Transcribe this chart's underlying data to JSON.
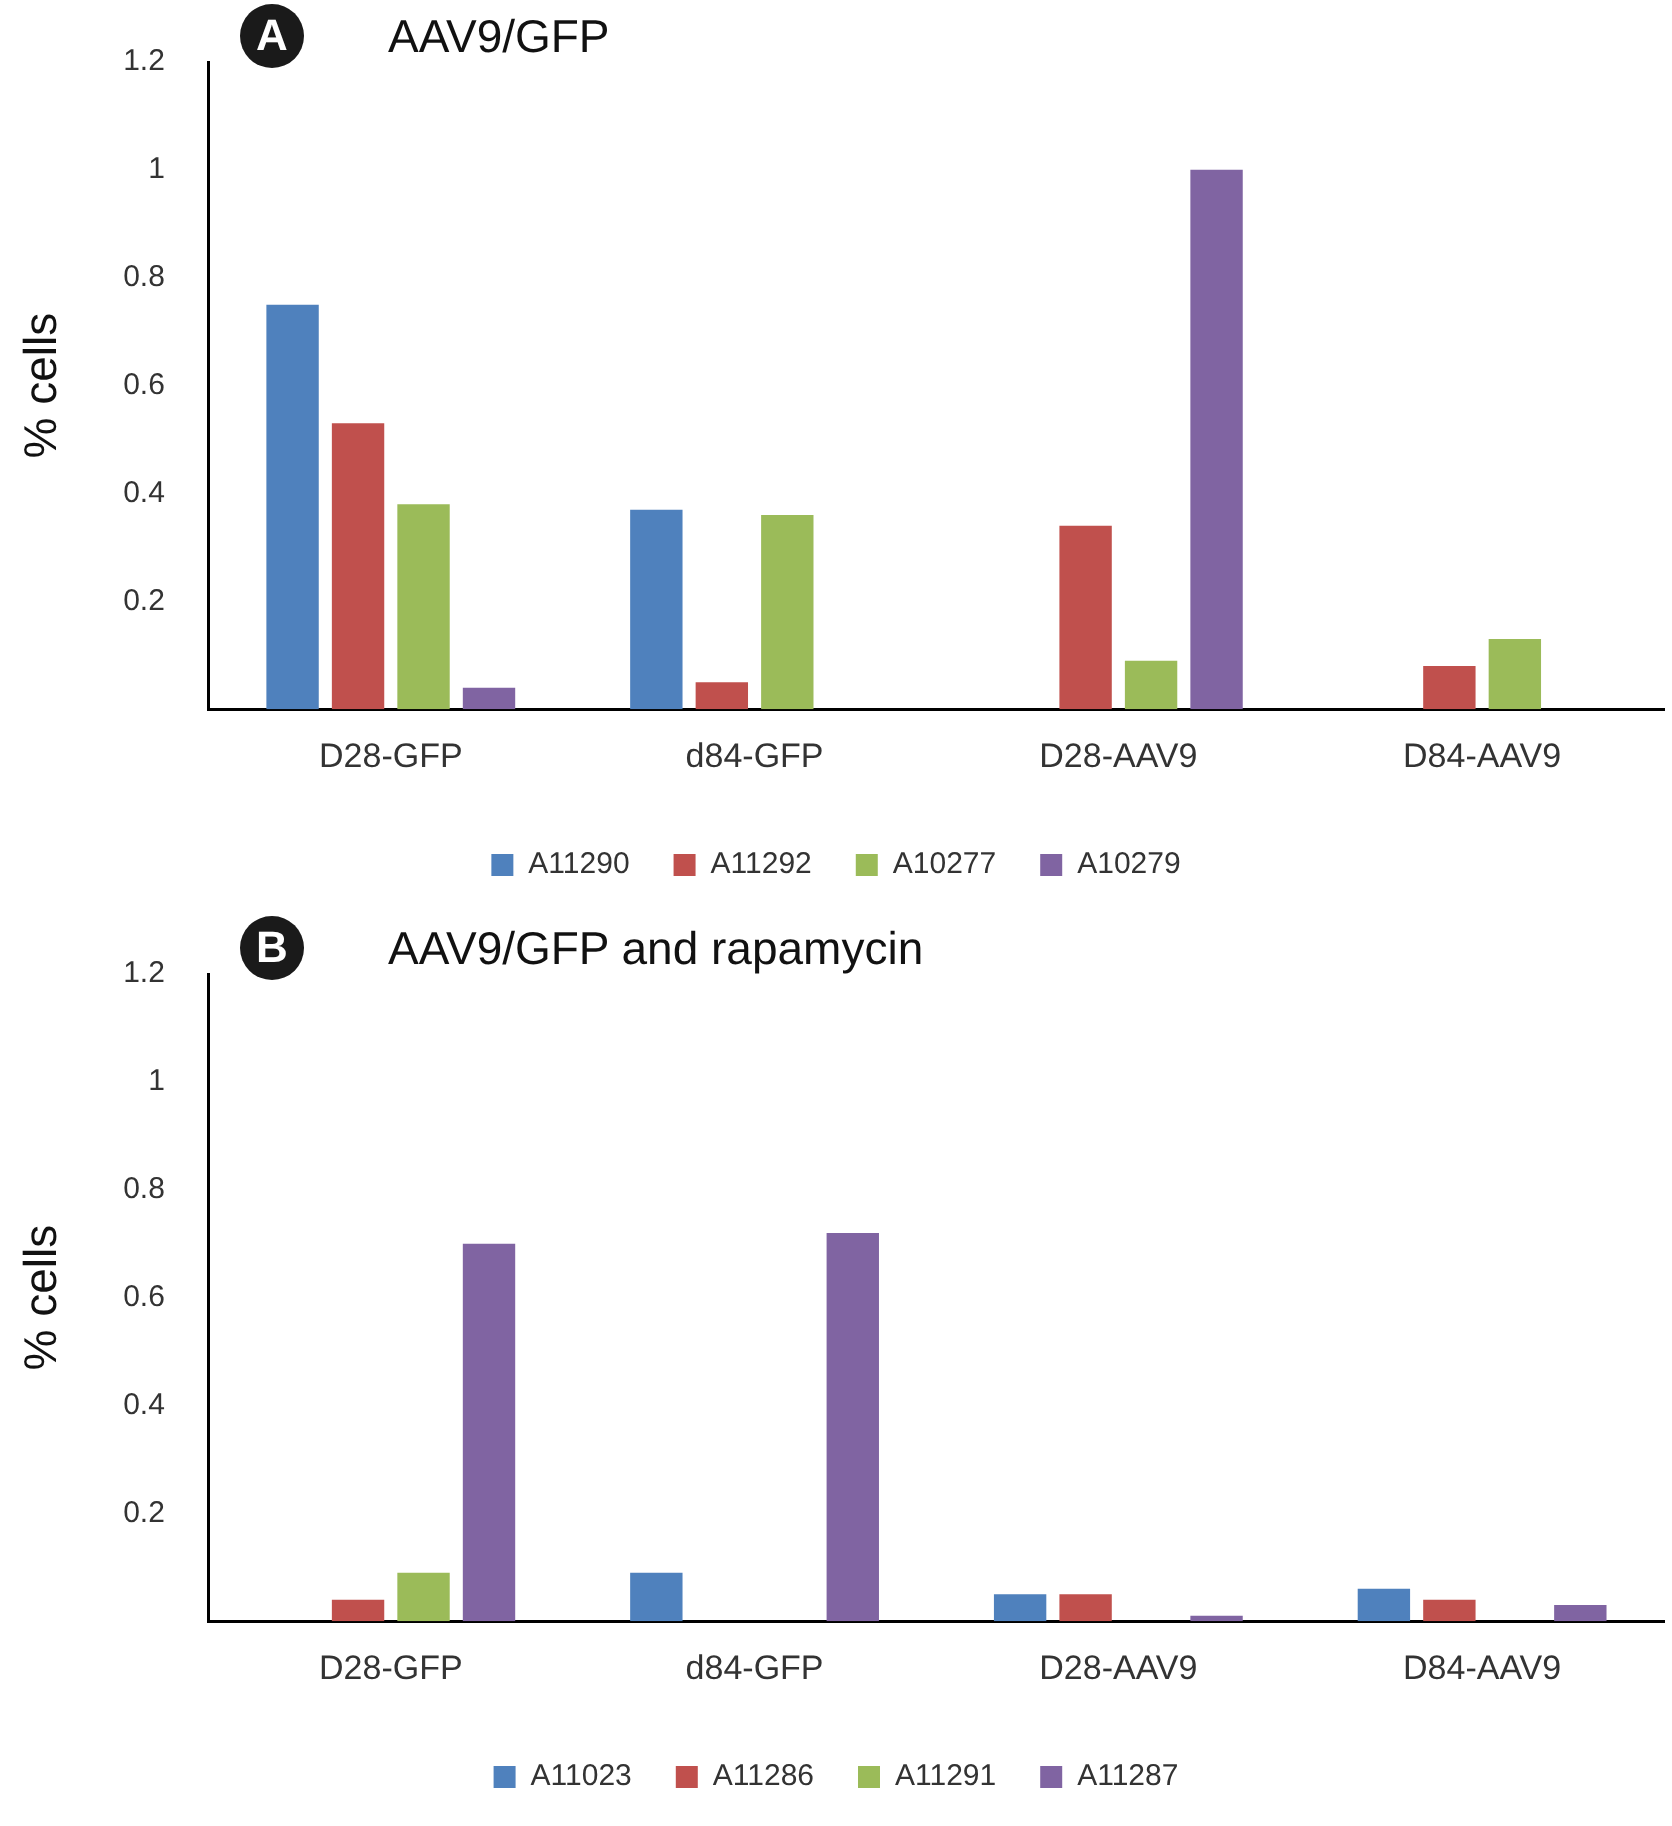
{
  "chart_data": [
    {
      "type": "bar",
      "title": "AAV9/GFP",
      "ylabel": "% cells",
      "annotations": [
        "A"
      ],
      "categories": [
        "D28-GFP",
        "d84-GFP",
        "D28-AAV9",
        "D84-AAV9"
      ],
      "series": [
        {
          "name": "A11290",
          "color": "#4f81bd",
          "values": [
            0.75,
            0.37,
            null,
            null
          ]
        },
        {
          "name": "A11292",
          "color": "#c0504d",
          "values": [
            0.53,
            0.05,
            0.34,
            0.08
          ]
        },
        {
          "name": "A10277",
          "color": "#9bbb59",
          "values": [
            0.38,
            0.36,
            0.09,
            0.13
          ]
        },
        {
          "name": "A10279",
          "color": "#8064a2",
          "values": [
            0.04,
            null,
            1.0,
            null
          ]
        }
      ],
      "ylim": [
        0,
        1.2
      ],
      "yticks": [
        0.2,
        0.4,
        0.6,
        0.8,
        1,
        1.2
      ],
      "grid": false,
      "legend": "bottom"
    },
    {
      "type": "bar",
      "title": "AAV9/GFP and rapamycin",
      "ylabel": "% cells",
      "annotations": [
        "B"
      ],
      "categories": [
        "D28-GFP",
        "d84-GFP",
        "D28-AAV9",
        "D84-AAV9"
      ],
      "series": [
        {
          "name": "A11023",
          "color": "#4f81bd",
          "values": [
            null,
            0.09,
            0.05,
            0.06
          ]
        },
        {
          "name": "A11286",
          "color": "#c0504d",
          "values": [
            0.04,
            null,
            0.05,
            0.04
          ]
        },
        {
          "name": "A11291",
          "color": "#9bbb59",
          "values": [
            0.09,
            null,
            null,
            null
          ]
        },
        {
          "name": "A11287",
          "color": "#8064a2",
          "values": [
            0.7,
            0.72,
            0.01,
            0.03
          ]
        }
      ],
      "ylim": [
        0,
        1.2
      ],
      "yticks": [
        0.2,
        0.4,
        0.6,
        0.8,
        1,
        1.2
      ],
      "grid": false,
      "legend": "bottom"
    }
  ]
}
